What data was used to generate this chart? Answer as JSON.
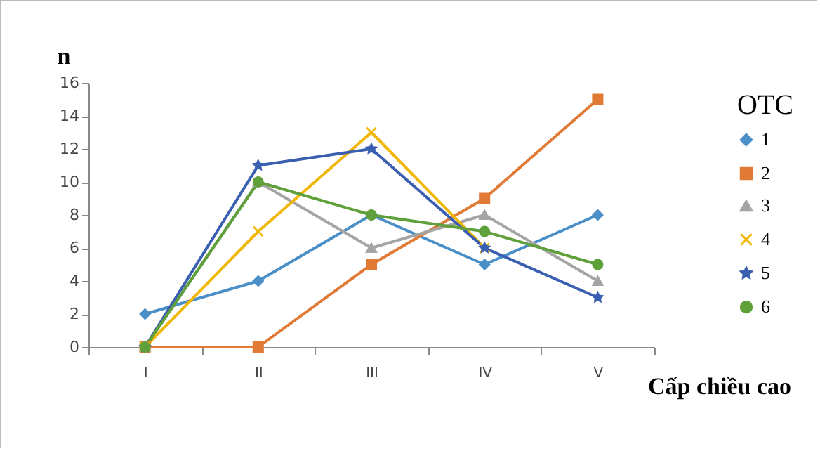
{
  "chart_data": {
    "type": "line",
    "xlabel": "Cấp chiều cao",
    "ylabel": "n",
    "legend_title": "OTC",
    "legend": "right",
    "grid": false,
    "categories": [
      "I",
      "II",
      "III",
      "IV",
      "V"
    ],
    "ylim": [
      0,
      16
    ],
    "yticks": [
      0,
      2,
      4,
      6,
      8,
      10,
      12,
      14,
      16
    ],
    "series": [
      {
        "name": "1",
        "color": "#4a8fc7",
        "marker": "diamond",
        "values": [
          2,
          4,
          8,
          5,
          8
        ]
      },
      {
        "name": "2",
        "color": "#e07a35",
        "marker": "square",
        "values": [
          0,
          0,
          5,
          9,
          15
        ]
      },
      {
        "name": "3",
        "color": "#a5a5a5",
        "marker": "triangle",
        "values": [
          0,
          10,
          6,
          8,
          4
        ]
      },
      {
        "name": "4",
        "color": "#f2b705",
        "marker": "cross",
        "values": [
          0,
          7,
          13,
          6,
          null
        ]
      },
      {
        "name": "5",
        "color": "#3a5fb0",
        "marker": "star",
        "values": [
          0,
          11,
          12,
          6,
          3
        ]
      },
      {
        "name": "6",
        "color": "#5fa03a",
        "marker": "circle",
        "values": [
          0,
          10,
          8,
          7,
          5
        ]
      }
    ]
  }
}
